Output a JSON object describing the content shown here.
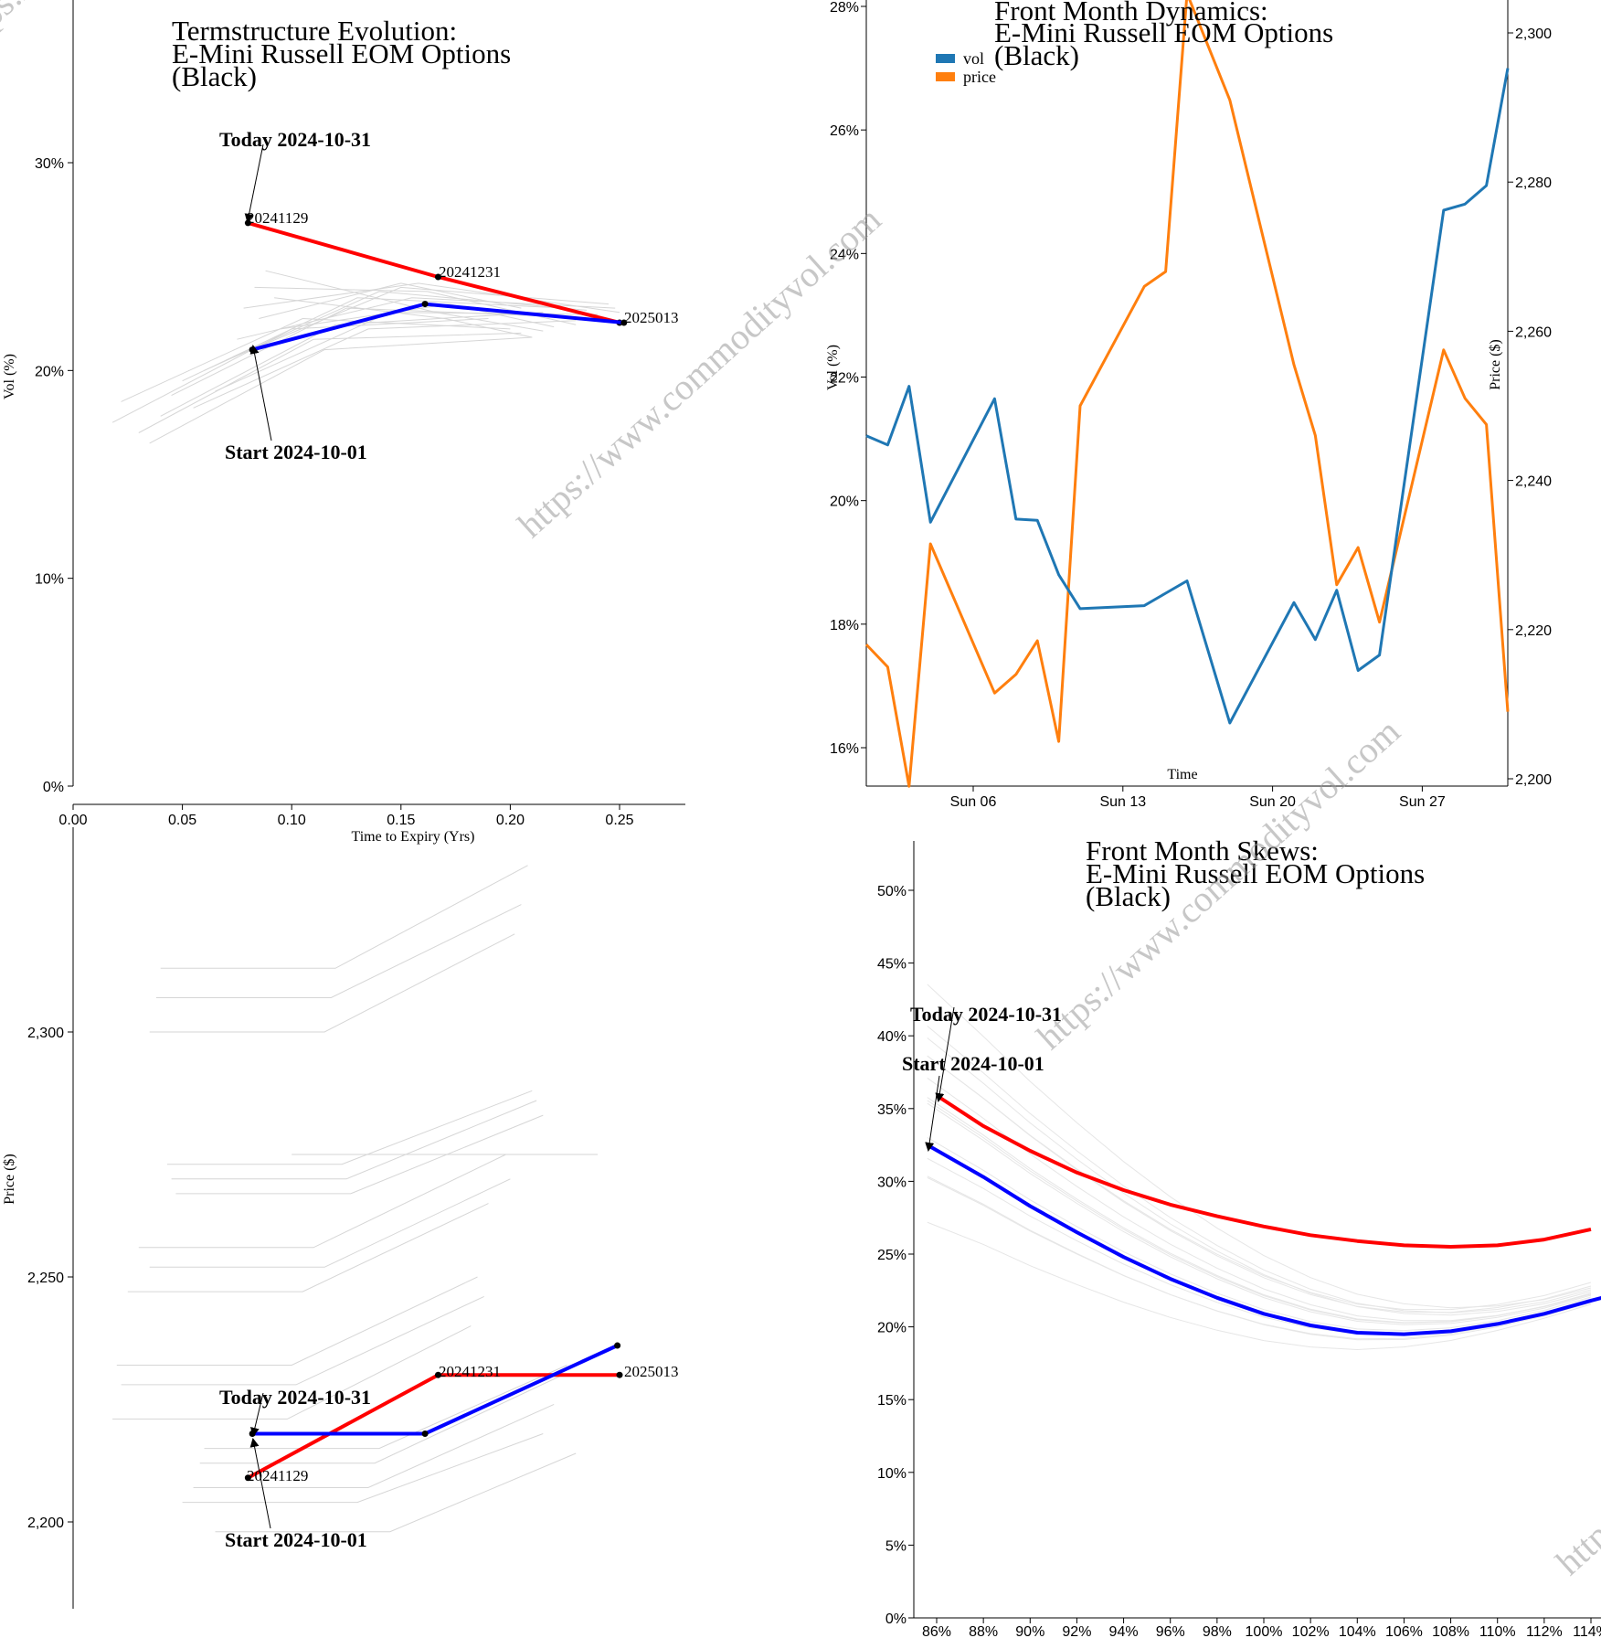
{
  "watermark": "https://www.commodityvol.com",
  "chart_data": [
    {
      "id": "termstructure",
      "type": "line",
      "title": [
        "Termstructure Evolution:",
        "E-Mini Russell EOM Options",
        "(Black)"
      ],
      "xlabel": "Time to Expiry (Yrs)",
      "ylabel": "Vol (%)",
      "xlim": [
        0,
        0.28
      ],
      "ylim": [
        0,
        38
      ],
      "xticks": [
        0,
        0.05,
        0.1,
        0.15,
        0.2,
        0.25
      ],
      "xtick_labels": [
        "0.00",
        "0.05",
        "0.10",
        "0.15",
        "0.20",
        "0.25"
      ],
      "yticks": [
        0,
        10,
        20,
        30
      ],
      "ytick_labels": [
        "0%",
        "10%",
        "20%",
        "30%"
      ],
      "series": [
        {
          "name": "Today 2024-10-31",
          "color": "#ff0000",
          "x": [
            0.08,
            0.167,
            0.25
          ],
          "y": [
            27.1,
            24.5,
            22.3
          ]
        },
        {
          "name": "Start 2024-10-01",
          "color": "#0000ff",
          "x": [
            0.082,
            0.161,
            0.252
          ],
          "y": [
            21.0,
            23.2,
            22.3
          ]
        }
      ],
      "history": [
        [
          [
            0.018,
            17.5
          ],
          [
            0.1,
            22.0
          ],
          [
            0.19,
            22.5
          ]
        ],
        [
          [
            0.022,
            18.5
          ],
          [
            0.105,
            22.5
          ],
          [
            0.2,
            22.0
          ]
        ],
        [
          [
            0.03,
            17.0
          ],
          [
            0.11,
            21.5
          ],
          [
            0.205,
            21.8
          ]
        ],
        [
          [
            0.035,
            16.5
          ],
          [
            0.115,
            21.0
          ],
          [
            0.21,
            21.6
          ]
        ],
        [
          [
            0.04,
            17.8
          ],
          [
            0.12,
            22.2
          ],
          [
            0.215,
            22.8
          ]
        ],
        [
          [
            0.045,
            18.8
          ],
          [
            0.125,
            23.0
          ],
          [
            0.22,
            22.6
          ]
        ],
        [
          [
            0.05,
            19.5
          ],
          [
            0.13,
            23.5
          ],
          [
            0.225,
            23.0
          ]
        ],
        [
          [
            0.055,
            18.2
          ],
          [
            0.135,
            22.0
          ],
          [
            0.23,
            22.4
          ]
        ],
        [
          [
            0.06,
            20.0
          ],
          [
            0.14,
            23.8
          ],
          [
            0.235,
            22.9
          ]
        ],
        [
          [
            0.065,
            19.0
          ],
          [
            0.145,
            22.8
          ],
          [
            0.24,
            22.7
          ]
        ],
        [
          [
            0.07,
            20.5
          ],
          [
            0.15,
            24.0
          ],
          [
            0.245,
            23.2
          ]
        ],
        [
          [
            0.075,
            21.5
          ],
          [
            0.155,
            23.5
          ],
          [
            0.248,
            23.0
          ]
        ],
        [
          [
            0.078,
            23.0
          ],
          [
            0.158,
            24.2
          ],
          [
            0.25,
            22.8
          ]
        ],
        [
          [
            0.083,
            24.0
          ],
          [
            0.162,
            23.8
          ],
          [
            0.23,
            22.2
          ]
        ],
        [
          [
            0.088,
            24.8
          ],
          [
            0.166,
            22.8
          ],
          [
            0.215,
            21.9
          ]
        ],
        [
          [
            0.092,
            23.5
          ],
          [
            0.17,
            22.5
          ],
          [
            0.21,
            21.6
          ]
        ],
        [
          [
            0.095,
            22.0
          ],
          [
            0.172,
            23.2
          ],
          [
            0.22,
            22.1
          ]
        ],
        [
          [
            0.085,
            22.5
          ],
          [
            0.15,
            24.2
          ],
          [
            0.205,
            23.0
          ]
        ]
      ],
      "point_labels": [
        "20241129",
        "20241231",
        "2025013"
      ],
      "annotations": {
        "today": "Today 2024-10-31",
        "start": "Start 2024-10-01"
      }
    },
    {
      "id": "dynamics",
      "type": "line",
      "title": [
        "Front Month Dynamics:",
        "E-Mini Russell EOM Options",
        "(Black)"
      ],
      "xlabel": "Time",
      "ylabel": "Vol (%)",
      "y2label": "Price ($)",
      "xticks_day": [
        6,
        13,
        20,
        27
      ],
      "xtick_labels": [
        "Sun 06",
        "Sun 13",
        "Sun 20",
        "Sun 27"
      ],
      "xlim_day": [
        1,
        31
      ],
      "ylim": [
        15.4,
        28.1
      ],
      "yticks": [
        16,
        18,
        20,
        22,
        24,
        26,
        28
      ],
      "ytick_labels": [
        "16%",
        "18%",
        "20%",
        "22%",
        "24%",
        "26%",
        "28%"
      ],
      "y2lim": [
        2199.0,
        2305.3
      ],
      "y2ticks": [
        2200,
        2220,
        2240,
        2260,
        2280,
        2300
      ],
      "y2tick_labels": [
        "2,200",
        "2,220",
        "2,240",
        "2,260",
        "2,280",
        "2,300"
      ],
      "legend": [
        "vol",
        "price"
      ],
      "series": [
        {
          "name": "vol",
          "color": "#1f77b4",
          "axis": "left",
          "x": [
            1,
            2,
            3,
            4,
            7,
            8,
            9,
            10,
            11,
            14,
            15,
            16,
            18,
            21,
            22,
            23,
            24,
            25,
            28,
            29,
            30,
            31
          ],
          "y": [
            21.05,
            20.9,
            21.85,
            19.65,
            21.65,
            19.7,
            19.68,
            18.8,
            18.25,
            18.3,
            18.5,
            18.7,
            16.4,
            18.35,
            17.75,
            18.55,
            17.25,
            17.5,
            24.7,
            24.8,
            25.1,
            27.0
          ]
        },
        {
          "name": "price",
          "color": "#ff7f0e",
          "axis": "right",
          "x": [
            1,
            2,
            3,
            4,
            7,
            8,
            9,
            10,
            11,
            14,
            15,
            16,
            18,
            21,
            22,
            23,
            24,
            25,
            28,
            29,
            30,
            31
          ],
          "y": [
            2218.0,
            2215.0,
            2199.0,
            2231.5,
            2211.5,
            2214.0,
            2218.5,
            2205.0,
            2250.0,
            2266.0,
            2268.0,
            2305.3,
            2291.0,
            2255.5,
            2246.0,
            2226.0,
            2231.0,
            2221.0,
            2257.5,
            2251.0,
            2247.5,
            2209.0
          ]
        }
      ]
    },
    {
      "id": "price_termstructure",
      "type": "line",
      "title": [],
      "xlabel": "",
      "ylabel": "Price ($)",
      "xlim": [
        0,
        0.28
      ],
      "ylim": [
        2183,
        2338
      ],
      "yticks": [
        2200,
        2250,
        2300
      ],
      "ytick_labels": [
        "2,200",
        "2,250",
        "2,300"
      ],
      "series": [
        {
          "name": "Today 2024-10-31",
          "color": "#ff0000",
          "x": [
            0.08,
            0.167,
            0.25
          ],
          "y": [
            2209,
            2230,
            2230
          ]
        },
        {
          "name": "Start 2024-10-01",
          "color": "#0000ff",
          "x": [
            0.082,
            0.161,
            0.249
          ],
          "y": [
            2218,
            2218,
            2236
          ]
        }
      ],
      "history": [
        [
          [
            0.04,
            2313
          ],
          [
            0.12,
            2313
          ],
          [
            0.208,
            2334
          ]
        ],
        [
          [
            0.038,
            2307
          ],
          [
            0.118,
            2307
          ],
          [
            0.205,
            2326
          ]
        ],
        [
          [
            0.035,
            2300
          ],
          [
            0.115,
            2300
          ],
          [
            0.202,
            2320
          ]
        ],
        [
          [
            0.043,
            2273
          ],
          [
            0.123,
            2273
          ],
          [
            0.21,
            2288
          ]
        ],
        [
          [
            0.045,
            2270
          ],
          [
            0.125,
            2270
          ],
          [
            0.212,
            2286
          ]
        ],
        [
          [
            0.047,
            2267
          ],
          [
            0.127,
            2267
          ],
          [
            0.215,
            2283
          ]
        ],
        [
          [
            0.03,
            2256
          ],
          [
            0.11,
            2256
          ],
          [
            0.198,
            2275
          ]
        ],
        [
          [
            0.035,
            2252
          ],
          [
            0.115,
            2252
          ],
          [
            0.2,
            2270
          ]
        ],
        [
          [
            0.025,
            2247
          ],
          [
            0.105,
            2247
          ],
          [
            0.19,
            2265
          ]
        ],
        [
          [
            0.02,
            2232
          ],
          [
            0.1,
            2232
          ],
          [
            0.185,
            2250
          ]
        ],
        [
          [
            0.022,
            2228
          ],
          [
            0.102,
            2228
          ],
          [
            0.188,
            2246
          ]
        ],
        [
          [
            0.018,
            2221
          ],
          [
            0.098,
            2221
          ],
          [
            0.182,
            2240
          ]
        ],
        [
          [
            0.06,
            2215
          ],
          [
            0.14,
            2215
          ],
          [
            0.226,
            2232
          ]
        ],
        [
          [
            0.058,
            2212
          ],
          [
            0.138,
            2212
          ],
          [
            0.224,
            2230
          ]
        ],
        [
          [
            0.055,
            2207
          ],
          [
            0.135,
            2207
          ],
          [
            0.22,
            2224
          ]
        ],
        [
          [
            0.05,
            2204
          ],
          [
            0.13,
            2204
          ],
          [
            0.215,
            2218
          ]
        ],
        [
          [
            0.065,
            2198
          ],
          [
            0.145,
            2198
          ],
          [
            0.23,
            2214
          ]
        ],
        [
          [
            0.1,
            2275
          ],
          [
            0.18,
            2275
          ],
          [
            0.24,
            2275
          ]
        ]
      ],
      "point_labels": [
        "20241129",
        "20241231",
        "2025013"
      ],
      "annotations": {
        "today": "Today 2024-10-31",
        "start": "Start 2024-10-01"
      }
    },
    {
      "id": "skews",
      "type": "line",
      "title": [
        "Front Month Skews:",
        "E-Mini Russell EOM Options",
        "(Black)"
      ],
      "xlabel": "",
      "ylabel": "",
      "xlim": [
        85,
        114.7
      ],
      "ylim": [
        0,
        53.5
      ],
      "xticks": [
        86,
        88,
        90,
        92,
        94,
        96,
        98,
        100,
        102,
        104,
        106,
        108,
        110,
        112,
        114
      ],
      "xtick_labels": [
        "86%",
        "88%",
        "90%",
        "92%",
        "94%",
        "96%",
        "98%",
        "100%",
        "102%",
        "104%",
        "106%",
        "108%",
        "110%",
        "112%",
        "114%"
      ],
      "yticks": [
        0,
        5,
        10,
        15,
        20,
        25,
        30,
        35,
        40,
        45,
        50
      ],
      "ytick_labels": [
        "0%",
        "5%",
        "10%",
        "15%",
        "20%",
        "25%",
        "30%",
        "35%",
        "40%",
        "45%",
        "50%"
      ],
      "series": [
        {
          "name": "Today 2024-10-31",
          "color": "#ff0000",
          "x": [
            86,
            88,
            90,
            92,
            94,
            96,
            98,
            100,
            102,
            104,
            106,
            108,
            110,
            112,
            114
          ],
          "y": [
            35.9,
            33.8,
            32.1,
            30.6,
            29.4,
            28.4,
            27.6,
            26.9,
            26.3,
            25.9,
            25.6,
            25.5,
            25.6,
            26.0,
            26.7
          ]
        },
        {
          "name": "Start 2024-10-01",
          "color": "#0000ff",
          "x": [
            85.6,
            88,
            90,
            92,
            94,
            96,
            98,
            100,
            102,
            104,
            106,
            108,
            110,
            112,
            114,
            114.7
          ],
          "y": [
            32.5,
            30.3,
            28.3,
            26.5,
            24.8,
            23.3,
            22.0,
            20.9,
            20.1,
            19.6,
            19.5,
            19.7,
            20.2,
            20.9,
            21.8,
            22.1
          ]
        }
      ],
      "history_bias": [
        [
          10.0,
          25.0,
          0.6
        ],
        [
          8.0,
          24.0,
          1.0
        ],
        [
          6.0,
          23.5,
          1.2
        ],
        [
          4.0,
          23.0,
          0.8
        ],
        [
          2.0,
          22.5,
          1.4
        ],
        [
          0.5,
          22.0,
          1.0
        ],
        [
          -1.0,
          21.5,
          0.9
        ],
        [
          -2.0,
          21.0,
          1.1
        ],
        [
          -3.0,
          20.5,
          0.7
        ],
        [
          -4.0,
          20.0,
          1.3
        ],
        [
          12.0,
          26.0,
          0.5
        ],
        [
          5.0,
          23.0,
          0.6
        ],
        [
          3.0,
          22.8,
          1.5
        ],
        [
          9.0,
          24.5,
          1.2
        ]
      ],
      "annotations": {
        "today": "Today 2024-10-31",
        "start": "Start 2024-10-01"
      }
    }
  ]
}
